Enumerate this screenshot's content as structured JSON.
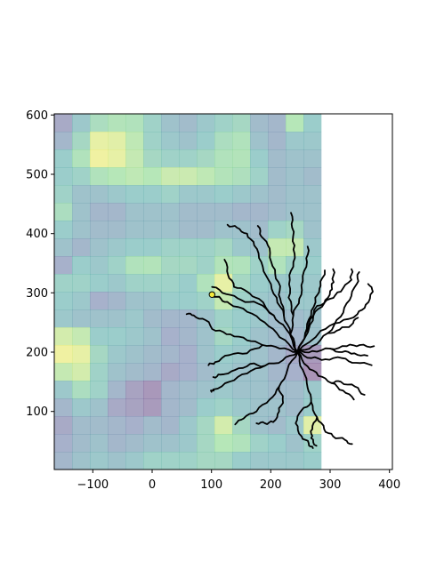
{
  "chart_data": {
    "type": "heatmap",
    "title": "",
    "xlabel": "",
    "ylabel": "",
    "xlim": [
      -165,
      405
    ],
    "ylim": [
      2,
      602
    ],
    "x_ticks": [
      -100,
      0,
      100,
      200,
      300,
      400
    ],
    "y_ticks": [
      100,
      200,
      300,
      400,
      500,
      600
    ],
    "x_tick_labels": [
      "−100",
      "0",
      "100",
      "200",
      "300",
      "400"
    ],
    "y_tick_labels": [
      "100",
      "200",
      "300",
      "400",
      "500",
      "600"
    ],
    "grid": false,
    "legend": "none",
    "heatmap": {
      "x_start": -165,
      "y_start": 2,
      "cell_size": 30,
      "opacity": 0.45,
      "colormap": "viridis",
      "rows_top_to_bottom": [
        [
          0.2,
          0.45,
          0.65,
          0.72,
          0.7,
          0.55,
          0.4,
          0.35,
          0.45,
          0.55,
          0.6,
          0.35,
          0.3,
          0.75,
          0.5
        ],
        [
          0.3,
          0.6,
          0.92,
          0.9,
          0.78,
          0.55,
          0.45,
          0.4,
          0.5,
          0.65,
          0.7,
          0.4,
          0.3,
          0.45,
          0.45
        ],
        [
          0.5,
          0.7,
          0.95,
          0.92,
          0.8,
          0.6,
          0.55,
          0.55,
          0.6,
          0.7,
          0.72,
          0.5,
          0.35,
          0.4,
          0.4
        ],
        [
          0.5,
          0.55,
          0.7,
          0.75,
          0.78,
          0.75,
          0.82,
          0.82,
          0.78,
          0.72,
          0.68,
          0.55,
          0.35,
          0.4,
          0.35
        ],
        [
          0.55,
          0.4,
          0.4,
          0.45,
          0.5,
          0.5,
          0.55,
          0.45,
          0.45,
          0.5,
          0.45,
          0.4,
          0.35,
          0.4,
          0.4
        ],
        [
          0.65,
          0.4,
          0.3,
          0.3,
          0.4,
          0.4,
          0.4,
          0.35,
          0.35,
          0.35,
          0.3,
          0.3,
          0.35,
          0.4,
          0.4
        ],
        [
          0.5,
          0.4,
          0.35,
          0.35,
          0.4,
          0.4,
          0.4,
          0.35,
          0.35,
          0.4,
          0.4,
          0.35,
          0.55,
          0.6,
          0.4
        ],
        [
          0.4,
          0.3,
          0.4,
          0.45,
          0.5,
          0.5,
          0.55,
          0.55,
          0.55,
          0.6,
          0.45,
          0.4,
          0.8,
          0.8,
          0.45
        ],
        [
          0.25,
          0.5,
          0.45,
          0.55,
          0.7,
          0.72,
          0.6,
          0.6,
          0.55,
          0.72,
          0.7,
          0.55,
          0.7,
          0.55,
          0.5
        ],
        [
          0.55,
          0.55,
          0.5,
          0.45,
          0.55,
          0.55,
          0.55,
          0.5,
          0.7,
          0.92,
          0.6,
          0.5,
          0.45,
          0.45,
          0.45
        ],
        [
          0.5,
          0.45,
          0.25,
          0.3,
          0.4,
          0.4,
          0.5,
          0.5,
          0.55,
          0.8,
          0.55,
          0.45,
          0.4,
          0.45,
          0.45
        ],
        [
          0.45,
          0.4,
          0.4,
          0.4,
          0.45,
          0.35,
          0.3,
          0.3,
          0.4,
          0.55,
          0.5,
          0.45,
          0.35,
          0.35,
          0.4
        ],
        [
          0.85,
          0.8,
          0.5,
          0.5,
          0.45,
          0.4,
          0.25,
          0.3,
          0.4,
          0.6,
          0.5,
          0.4,
          0.35,
          0.3,
          0.4
        ],
        [
          0.95,
          0.92,
          0.6,
          0.45,
          0.4,
          0.35,
          0.3,
          0.25,
          0.4,
          0.5,
          0.45,
          0.4,
          0.3,
          0.2,
          0.1
        ],
        [
          0.8,
          0.85,
          0.55,
          0.4,
          0.35,
          0.3,
          0.2,
          0.25,
          0.35,
          0.45,
          0.4,
          0.4,
          0.3,
          0.25,
          0.05
        ],
        [
          0.45,
          0.65,
          0.55,
          0.3,
          0.15,
          0.08,
          0.3,
          0.35,
          0.4,
          0.45,
          0.4,
          0.4,
          0.35,
          0.35,
          0.45
        ],
        [
          0.3,
          0.45,
          0.4,
          0.2,
          0.15,
          0.1,
          0.3,
          0.35,
          0.5,
          0.55,
          0.45,
          0.4,
          0.4,
          0.35,
          0.5
        ],
        [
          0.2,
          0.35,
          0.35,
          0.3,
          0.25,
          0.35,
          0.3,
          0.45,
          0.6,
          0.85,
          0.6,
          0.4,
          0.35,
          0.45,
          0.9
        ],
        [
          0.25,
          0.35,
          0.4,
          0.3,
          0.35,
          0.4,
          0.4,
          0.45,
          0.6,
          0.75,
          0.7,
          0.55,
          0.5,
          0.4,
          0.55
        ],
        [
          0.3,
          0.4,
          0.45,
          0.4,
          0.45,
          0.55,
          0.55,
          0.55,
          0.6,
          0.6,
          0.5,
          0.45,
          0.45,
          0.45,
          0.5
        ]
      ]
    },
    "neuron": {
      "color": "#000000",
      "soma": [
        245,
        200
      ],
      "marker": {
        "x": 101,
        "y": 297,
        "color": "#f4ea3c"
      },
      "branches": [
        [
          [
            245,
            200
          ],
          [
            233,
            230
          ],
          [
            222,
            262
          ],
          [
            210,
            292
          ],
          [
            196,
            322
          ],
          [
            184,
            352
          ],
          [
            172,
            380
          ],
          [
            160,
            400
          ],
          [
            143,
            410
          ],
          [
            127,
            415
          ]
        ],
        [
          [
            222,
            262
          ],
          [
            216,
            290
          ],
          [
            213,
            318
          ],
          [
            203,
            345
          ],
          [
            198,
            375
          ],
          [
            184,
            395
          ],
          [
            178,
            413
          ]
        ],
        [
          [
            233,
            230
          ],
          [
            238,
            262
          ],
          [
            230,
            292
          ],
          [
            232,
            322
          ],
          [
            238,
            352
          ],
          [
            240,
            380
          ],
          [
            236,
            410
          ],
          [
            234,
            435
          ]
        ],
        [
          [
            238,
            262
          ],
          [
            248,
            290
          ],
          [
            254,
            320
          ],
          [
            261,
            352
          ],
          [
            262,
            378
          ]
        ],
        [
          [
            245,
            200
          ],
          [
            258,
            232
          ],
          [
            268,
            262
          ],
          [
            275,
            292
          ],
          [
            284,
            312
          ],
          [
            291,
            338
          ]
        ],
        [
          [
            258,
            232
          ],
          [
            272,
            262
          ],
          [
            290,
            282
          ],
          [
            300,
            303
          ],
          [
            306,
            318
          ],
          [
            305,
            340
          ]
        ],
        [
          [
            245,
            200
          ],
          [
            270,
            210
          ],
          [
            296,
            232
          ],
          [
            318,
            260
          ],
          [
            333,
            288
          ],
          [
            345,
            315
          ],
          [
            349,
            335
          ]
        ],
        [
          [
            296,
            232
          ],
          [
            316,
            238
          ],
          [
            336,
            246
          ],
          [
            347,
            258
          ]
        ],
        [
          [
            245,
            200
          ],
          [
            270,
            202
          ],
          [
            300,
            206
          ],
          [
            328,
            210
          ],
          [
            350,
            212
          ],
          [
            374,
            210
          ]
        ],
        [
          [
            245,
            200
          ],
          [
            268,
            190
          ],
          [
            292,
            188
          ],
          [
            320,
            190
          ],
          [
            344,
            182
          ],
          [
            370,
            178
          ]
        ],
        [
          [
            300,
            206
          ],
          [
            320,
            200
          ],
          [
            341,
            198
          ],
          [
            363,
            194
          ]
        ],
        [
          [
            245,
            200
          ],
          [
            262,
            176
          ],
          [
            280,
            160
          ],
          [
            302,
            148
          ],
          [
            322,
            135
          ],
          [
            340,
            120
          ]
        ],
        [
          [
            302,
            148
          ],
          [
            318,
            150
          ],
          [
            342,
            142
          ],
          [
            358,
            128
          ]
        ],
        [
          [
            245,
            200
          ],
          [
            254,
            170
          ],
          [
            262,
            140
          ],
          [
            268,
            116
          ],
          [
            278,
            90
          ],
          [
            290,
            70
          ],
          [
            305,
            58
          ],
          [
            325,
            52
          ],
          [
            337,
            45
          ]
        ],
        [
          [
            268,
            116
          ],
          [
            252,
            102
          ],
          [
            242,
            80
          ],
          [
            252,
            58
          ],
          [
            264,
            46
          ],
          [
            271,
            38
          ]
        ],
        [
          [
            278,
            90
          ],
          [
            270,
            70
          ],
          [
            268,
            55
          ],
          [
            277,
            42
          ]
        ],
        [
          [
            245,
            200
          ],
          [
            228,
            170
          ],
          [
            214,
            142
          ],
          [
            198,
            120
          ],
          [
            176,
            100
          ],
          [
            154,
            88
          ],
          [
            140,
            78
          ]
        ],
        [
          [
            214,
            142
          ],
          [
            220,
            120
          ],
          [
            214,
            100
          ],
          [
            204,
            82
          ],
          [
            190,
            80
          ],
          [
            176,
            80
          ]
        ],
        [
          [
            245,
            200
          ],
          [
            220,
            186
          ],
          [
            190,
            177
          ],
          [
            160,
            164
          ],
          [
            130,
            150
          ],
          [
            103,
            137
          ],
          [
            100,
            133
          ]
        ],
        [
          [
            190,
            177
          ],
          [
            165,
            180
          ],
          [
            140,
            170
          ],
          [
            115,
            162
          ],
          [
            103,
            158
          ]
        ],
        [
          [
            245,
            200
          ],
          [
            215,
            206
          ],
          [
            186,
            212
          ],
          [
            160,
            220
          ],
          [
            132,
            230
          ],
          [
            107,
            236
          ],
          [
            90,
            254
          ],
          [
            70,
            262
          ],
          [
            58,
            264
          ]
        ],
        [
          [
            186,
            212
          ],
          [
            160,
            198
          ],
          [
            130,
            195
          ],
          [
            106,
            183
          ],
          [
            95,
            178
          ]
        ],
        [
          [
            245,
            200
          ],
          [
            215,
            225
          ],
          [
            190,
            250
          ],
          [
            160,
            268
          ],
          [
            130,
            282
          ],
          [
            116,
            290
          ],
          [
            101,
            297
          ]
        ],
        [
          [
            245,
            200
          ],
          [
            225,
            240
          ],
          [
            205,
            262
          ],
          [
            178,
            282
          ],
          [
            150,
            288
          ],
          [
            125,
            298
          ],
          [
            101,
            310
          ]
        ],
        [
          [
            205,
            262
          ],
          [
            180,
            290
          ],
          [
            160,
            302
          ],
          [
            138,
            310
          ],
          [
            128,
            330
          ],
          [
            122,
            356
          ]
        ],
        [
          [
            245,
            200
          ],
          [
            266,
            246
          ],
          [
            278,
            278
          ],
          [
            300,
            290
          ],
          [
            318,
            302
          ],
          [
            336,
            322
          ],
          [
            336,
            340
          ]
        ],
        [
          [
            245,
            200
          ],
          [
            284,
            236
          ],
          [
            316,
            250
          ],
          [
            346,
            264
          ],
          [
            360,
            280
          ],
          [
            372,
            302
          ],
          [
            364,
            315
          ]
        ]
      ]
    }
  }
}
